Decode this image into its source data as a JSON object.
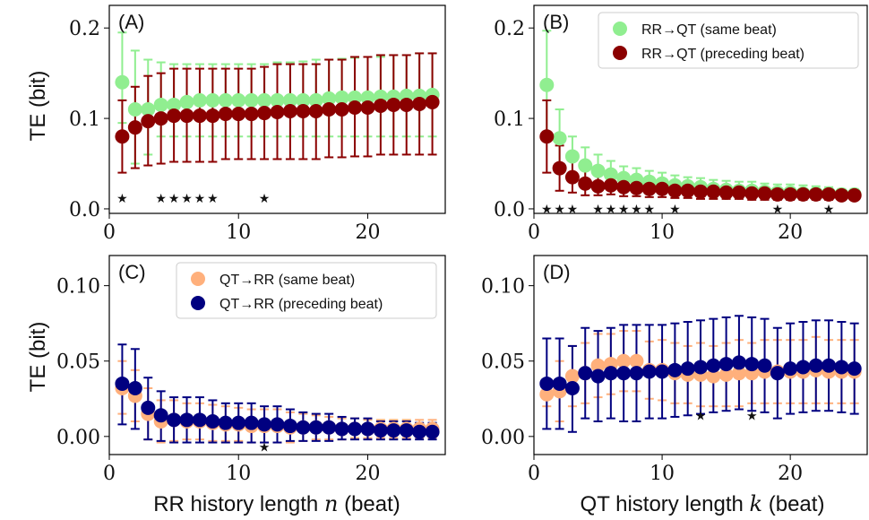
{
  "figure": {
    "y_axis_title": "TE (bit)",
    "x_axis_title_left_prefix": "RR history length ",
    "x_axis_title_left_var": "n",
    "x_axis_title_left_suffix": " (beat)",
    "x_axis_title_right_prefix": "QT history length ",
    "x_axis_title_right_var": "k",
    "x_axis_title_right_suffix": " (beat)"
  },
  "colors": {
    "light_green": "#90ee90",
    "dark_red": "#8b0000",
    "peach": "#ffb07c",
    "navy": "#000080"
  },
  "chart_data": [
    {
      "type": "scatter",
      "panel": "(A)",
      "xlim": [
        0,
        26
      ],
      "ylim": [
        -0.005,
        0.225
      ],
      "xticks": [
        0,
        10,
        20
      ],
      "yticks": [
        0.0,
        0.1,
        0.2
      ],
      "ytick_labels": [
        "0.0",
        "0.1",
        "0.2"
      ],
      "legend": null,
      "stars_x": [
        1,
        4,
        5,
        6,
        7,
        8,
        12
      ],
      "stars_y": 0.012,
      "series": [
        {
          "label": "",
          "color": "light_green",
          "x": [
            1,
            2,
            3,
            4,
            5,
            6,
            7,
            8,
            9,
            10,
            11,
            12,
            13,
            14,
            15,
            16,
            17,
            18,
            19,
            20,
            21,
            22,
            23,
            24,
            25
          ],
          "y": [
            0.14,
            0.11,
            0.11,
            0.115,
            0.115,
            0.118,
            0.12,
            0.12,
            0.12,
            0.12,
            0.12,
            0.12,
            0.12,
            0.12,
            0.12,
            0.12,
            0.122,
            0.123,
            0.123,
            0.123,
            0.124,
            0.124,
            0.125,
            0.125,
            0.126
          ],
          "lower": [
            0.095,
            0.05,
            0.06,
            0.08,
            0.08,
            0.08,
            0.08,
            0.08,
            0.08,
            0.08,
            0.08,
            0.08,
            0.08,
            0.08,
            0.08,
            0.08,
            0.08,
            0.08,
            0.08,
            0.08,
            0.08,
            0.08,
            0.08,
            0.08,
            0.08
          ],
          "upper": [
            0.195,
            0.175,
            0.165,
            0.162,
            0.16,
            0.16,
            0.16,
            0.16,
            0.16,
            0.16,
            0.16,
            0.16,
            0.162,
            0.162,
            0.163,
            0.165,
            0.165,
            0.166,
            0.167,
            0.168,
            0.168,
            0.17,
            0.17,
            0.172,
            0.172
          ]
        },
        {
          "label": "",
          "color": "dark_red",
          "x": [
            1,
            2,
            3,
            4,
            5,
            6,
            7,
            8,
            9,
            10,
            11,
            12,
            13,
            14,
            15,
            16,
            17,
            18,
            19,
            20,
            21,
            22,
            23,
            24,
            25
          ],
          "y": [
            0.08,
            0.09,
            0.097,
            0.1,
            0.103,
            0.103,
            0.103,
            0.103,
            0.105,
            0.105,
            0.105,
            0.106,
            0.107,
            0.108,
            0.108,
            0.108,
            0.11,
            0.11,
            0.112,
            0.112,
            0.114,
            0.115,
            0.115,
            0.116,
            0.118
          ],
          "lower": [
            0.04,
            0.045,
            0.048,
            0.05,
            0.052,
            0.052,
            0.052,
            0.052,
            0.055,
            0.055,
            0.055,
            0.055,
            0.055,
            0.055,
            0.055,
            0.055,
            0.057,
            0.057,
            0.058,
            0.058,
            0.06,
            0.06,
            0.06,
            0.06,
            0.06
          ],
          "upper": [
            0.12,
            0.135,
            0.147,
            0.15,
            0.155,
            0.155,
            0.155,
            0.155,
            0.155,
            0.155,
            0.155,
            0.157,
            0.16,
            0.16,
            0.16,
            0.16,
            0.165,
            0.165,
            0.168,
            0.168,
            0.17,
            0.17,
            0.17,
            0.172,
            0.172
          ]
        }
      ]
    },
    {
      "type": "scatter",
      "panel": "(B)",
      "xlim": [
        0,
        26
      ],
      "ylim": [
        -0.005,
        0.225
      ],
      "xticks": [
        0,
        10,
        20
      ],
      "yticks": [
        0.0,
        0.1,
        0.2
      ],
      "ytick_labels": [
        "0.0",
        "0.1",
        "0.2"
      ],
      "legend": {
        "position": "top-right",
        "entries": [
          {
            "label": "RR→QT (same beat)",
            "color": "light_green"
          },
          {
            "label": "RR→QT (preceding beat)",
            "color": "dark_red"
          }
        ]
      },
      "stars_x": [
        1,
        2,
        3,
        5,
        6,
        7,
        8,
        9,
        11,
        19,
        23
      ],
      "stars_y": 0.0,
      "series": [
        {
          "label": "RR→QT (same beat)",
          "color": "light_green",
          "x": [
            1,
            2,
            3,
            4,
            5,
            6,
            7,
            8,
            9,
            10,
            11,
            12,
            13,
            14,
            15,
            16,
            17,
            18,
            19,
            20,
            21,
            22,
            23,
            24,
            25
          ],
          "y": [
            0.137,
            0.078,
            0.058,
            0.048,
            0.042,
            0.038,
            0.034,
            0.032,
            0.03,
            0.028,
            0.026,
            0.025,
            0.024,
            0.022,
            0.021,
            0.02,
            0.02,
            0.019,
            0.018,
            0.018,
            0.017,
            0.017,
            0.017,
            0.016,
            0.016
          ],
          "lower": [
            0.075,
            0.045,
            0.035,
            0.03,
            0.025,
            0.022,
            0.02,
            0.02,
            0.018,
            0.017,
            0.016,
            0.015,
            0.014,
            0.013,
            0.012,
            0.012,
            0.012,
            0.012,
            0.011,
            0.011,
            0.011,
            0.011,
            0.011,
            0.011,
            0.011
          ],
          "upper": [
            0.197,
            0.11,
            0.08,
            0.068,
            0.06,
            0.053,
            0.047,
            0.045,
            0.042,
            0.04,
            0.037,
            0.035,
            0.034,
            0.032,
            0.031,
            0.03,
            0.03,
            0.028,
            0.027,
            0.027,
            0.026,
            0.025,
            0.024,
            0.022,
            0.022
          ]
        },
        {
          "label": "RR→QT (preceding beat)",
          "color": "dark_red",
          "x": [
            1,
            2,
            3,
            4,
            5,
            6,
            7,
            8,
            9,
            10,
            11,
            12,
            13,
            14,
            15,
            16,
            17,
            18,
            19,
            20,
            21,
            22,
            23,
            24,
            25
          ],
          "y": [
            0.08,
            0.045,
            0.035,
            0.028,
            0.025,
            0.026,
            0.024,
            0.023,
            0.022,
            0.022,
            0.02,
            0.02,
            0.019,
            0.019,
            0.018,
            0.018,
            0.017,
            0.017,
            0.016,
            0.016,
            0.016,
            0.016,
            0.016,
            0.015,
            0.015
          ],
          "lower": [
            0.04,
            0.02,
            0.018,
            0.015,
            0.015,
            0.016,
            0.014,
            0.014,
            0.013,
            0.013,
            0.012,
            0.012,
            0.011,
            0.011,
            0.011,
            0.011,
            0.01,
            0.01,
            0.01,
            0.01,
            0.01,
            0.01,
            0.01,
            0.01,
            0.01
          ],
          "upper": [
            0.12,
            0.07,
            0.055,
            0.045,
            0.038,
            0.036,
            0.034,
            0.032,
            0.031,
            0.031,
            0.029,
            0.028,
            0.027,
            0.027,
            0.026,
            0.025,
            0.024,
            0.024,
            0.023,
            0.023,
            0.022,
            0.022,
            0.022,
            0.021,
            0.021
          ]
        }
      ]
    },
    {
      "type": "scatter",
      "panel": "(C)",
      "xlim": [
        0,
        26
      ],
      "ylim": [
        -0.012,
        0.12
      ],
      "xticks": [
        0,
        10,
        20
      ],
      "yticks": [
        0.0,
        0.05,
        0.1
      ],
      "ytick_labels": [
        "0.00",
        "0.05",
        "0.10"
      ],
      "legend": {
        "position": "top-right",
        "entries": [
          {
            "label": "QT→RR (same beat)",
            "color": "peach"
          },
          {
            "label": "QT→RR (preceding beat)",
            "color": "navy"
          }
        ]
      },
      "stars_x": [
        12
      ],
      "stars_y": -0.007,
      "series": [
        {
          "label": "QT→RR (same beat)",
          "color": "peach",
          "x": [
            1,
            2,
            3,
            4,
            5,
            6,
            7,
            8,
            9,
            10,
            11,
            12,
            13,
            14,
            15,
            16,
            17,
            18,
            19,
            20,
            21,
            22,
            23,
            24,
            25
          ],
          "y": [
            0.032,
            0.027,
            0.015,
            0.01,
            0.011,
            0.01,
            0.01,
            0.009,
            0.008,
            0.008,
            0.007,
            0.007,
            0.007,
            0.006,
            0.006,
            0.006,
            0.006,
            0.005,
            0.005,
            0.005,
            0.005,
            0.005,
            0.005,
            0.005,
            0.005
          ],
          "lower": [
            0.015,
            0.01,
            -0.002,
            -0.004,
            -0.003,
            -0.002,
            -0.002,
            -0.003,
            -0.003,
            -0.003,
            -0.004,
            -0.004,
            -0.004,
            -0.004,
            -0.003,
            -0.002,
            -0.002,
            -0.002,
            -0.001,
            -0.001,
            -0.001,
            -0.001,
            -0.001,
            -0.001,
            -0.001
          ],
          "upper": [
            0.05,
            0.044,
            0.032,
            0.024,
            0.024,
            0.022,
            0.022,
            0.021,
            0.02,
            0.019,
            0.018,
            0.018,
            0.018,
            0.016,
            0.015,
            0.014,
            0.013,
            0.012,
            0.012,
            0.011,
            0.011,
            0.011,
            0.011,
            0.011,
            0.011
          ]
        },
        {
          "label": "QT→RR (preceding beat)",
          "color": "navy",
          "x": [
            1,
            2,
            3,
            4,
            5,
            6,
            7,
            8,
            9,
            10,
            11,
            12,
            13,
            14,
            15,
            16,
            17,
            18,
            19,
            20,
            21,
            22,
            23,
            24,
            25
          ],
          "y": [
            0.035,
            0.032,
            0.019,
            0.014,
            0.011,
            0.011,
            0.011,
            0.01,
            0.009,
            0.009,
            0.009,
            0.008,
            0.008,
            0.007,
            0.006,
            0.006,
            0.006,
            0.005,
            0.005,
            0.005,
            0.004,
            0.004,
            0.004,
            0.003,
            0.003
          ],
          "lower": [
            0.008,
            0.005,
            -0.002,
            -0.003,
            -0.004,
            -0.004,
            -0.004,
            -0.004,
            -0.004,
            -0.004,
            -0.004,
            -0.004,
            -0.004,
            -0.003,
            -0.003,
            -0.003,
            -0.003,
            -0.002,
            -0.002,
            -0.002,
            -0.002,
            -0.002,
            -0.002,
            -0.002,
            -0.002
          ],
          "upper": [
            0.061,
            0.058,
            0.039,
            0.03,
            0.026,
            0.026,
            0.026,
            0.024,
            0.022,
            0.022,
            0.022,
            0.02,
            0.02,
            0.018,
            0.016,
            0.015,
            0.015,
            0.013,
            0.012,
            0.012,
            0.01,
            0.01,
            0.01,
            0.009,
            0.009
          ]
        }
      ]
    },
    {
      "type": "scatter",
      "panel": "(D)",
      "xlim": [
        0,
        26
      ],
      "ylim": [
        -0.012,
        0.12
      ],
      "xticks": [
        0,
        10,
        20
      ],
      "yticks": [
        0.0,
        0.05,
        0.1
      ],
      "ytick_labels": [
        "0.00",
        "0.05",
        "0.10"
      ],
      "legend": null,
      "stars_x": [
        13,
        17
      ],
      "stars_y": 0.014,
      "series": [
        {
          "label": "",
          "color": "peach",
          "x": [
            1,
            2,
            3,
            4,
            5,
            6,
            7,
            8,
            9,
            10,
            11,
            12,
            13,
            14,
            15,
            16,
            17,
            18,
            19,
            20,
            21,
            22,
            23,
            24,
            25
          ],
          "y": [
            0.028,
            0.03,
            0.04,
            0.042,
            0.047,
            0.048,
            0.05,
            0.05,
            0.044,
            0.044,
            0.042,
            0.041,
            0.041,
            0.04,
            0.041,
            0.042,
            0.042,
            0.043,
            0.043,
            0.043,
            0.043,
            0.044,
            0.043,
            0.043,
            0.043
          ],
          "lower": [
            0.02,
            0.01,
            0.02,
            0.022,
            0.026,
            0.028,
            0.03,
            0.03,
            0.025,
            0.024,
            0.022,
            0.022,
            0.02,
            0.02,
            0.02,
            0.02,
            0.022,
            0.022,
            0.022,
            0.022,
            0.022,
            0.022,
            0.022,
            0.022,
            0.022
          ],
          "upper": [
            0.036,
            0.05,
            0.06,
            0.062,
            0.068,
            0.068,
            0.07,
            0.07,
            0.063,
            0.064,
            0.062,
            0.06,
            0.062,
            0.06,
            0.062,
            0.064,
            0.062,
            0.064,
            0.064,
            0.064,
            0.064,
            0.066,
            0.064,
            0.064,
            0.064
          ]
        },
        {
          "label": "",
          "color": "navy",
          "x": [
            1,
            2,
            3,
            4,
            5,
            6,
            7,
            8,
            9,
            10,
            11,
            12,
            13,
            14,
            15,
            16,
            17,
            18,
            19,
            20,
            21,
            22,
            23,
            24,
            25
          ],
          "y": [
            0.035,
            0.035,
            0.032,
            0.042,
            0.04,
            0.042,
            0.042,
            0.042,
            0.043,
            0.043,
            0.044,
            0.045,
            0.046,
            0.047,
            0.048,
            0.049,
            0.048,
            0.047,
            0.042,
            0.045,
            0.046,
            0.047,
            0.047,
            0.046,
            0.045
          ],
          "lower": [
            0.005,
            0.005,
            0.003,
            0.012,
            0.01,
            0.012,
            0.01,
            0.01,
            0.012,
            0.012,
            0.013,
            0.014,
            0.015,
            0.016,
            0.017,
            0.018,
            0.017,
            0.016,
            0.012,
            0.015,
            0.016,
            0.017,
            0.017,
            0.016,
            0.015
          ],
          "upper": [
            0.065,
            0.065,
            0.06,
            0.072,
            0.07,
            0.072,
            0.074,
            0.074,
            0.074,
            0.074,
            0.075,
            0.076,
            0.077,
            0.078,
            0.079,
            0.08,
            0.079,
            0.078,
            0.072,
            0.075,
            0.076,
            0.077,
            0.077,
            0.076,
            0.075
          ]
        }
      ]
    }
  ]
}
